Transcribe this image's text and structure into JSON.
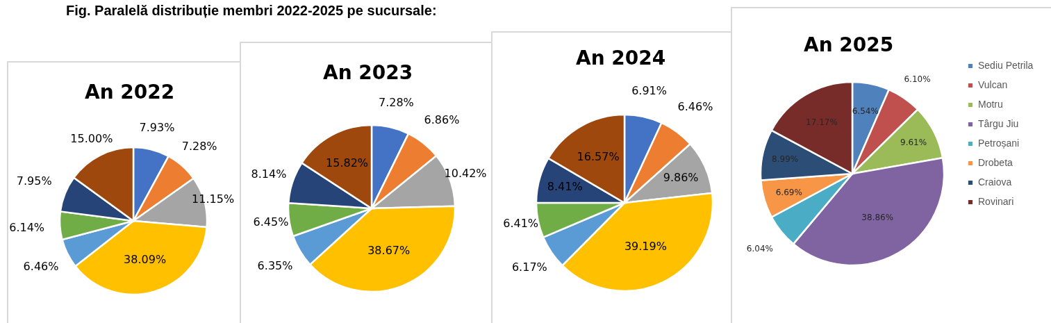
{
  "chart_data": [
    {
      "type": "pie",
      "title": "An 2022",
      "annotations": [
        "Fig. Paralelă distribuție membri 2022-2025 pe sucursale:"
      ],
      "categories": [
        null,
        null,
        null,
        null,
        null,
        null,
        null,
        null
      ],
      "values": [
        7.93,
        7.28,
        11.15,
        38.09,
        6.46,
        6.14,
        7.95,
        15.0
      ],
      "value_labels": [
        "7.93%",
        "7.28%",
        "11.15%",
        "38.09%",
        "6.46%",
        "6.14%",
        "7.95%",
        "15.00%"
      ],
      "colors": [
        "#4472c4",
        "#ed7d31",
        "#a5a5a5",
        "#ffc000",
        "#5b9bd5",
        "#70ad47",
        "#264478",
        "#9e480e"
      ],
      "legend": false
    },
    {
      "type": "pie",
      "title": "An 2023",
      "categories": [
        null,
        null,
        null,
        null,
        null,
        null,
        null,
        null
      ],
      "values": [
        7.28,
        6.86,
        10.42,
        38.67,
        6.35,
        6.45,
        8.14,
        15.82
      ],
      "value_labels": [
        "7.28%",
        "6.86%",
        "10.42%",
        "38.67%",
        "6.35%",
        "6.45%",
        "8.14%",
        "15.82%"
      ],
      "colors": [
        "#4472c4",
        "#ed7d31",
        "#a5a5a5",
        "#ffc000",
        "#5b9bd5",
        "#70ad47",
        "#264478",
        "#9e480e"
      ],
      "legend": false
    },
    {
      "type": "pie",
      "title": "An 2024",
      "categories": [
        null,
        null,
        null,
        null,
        null,
        null,
        null,
        null
      ],
      "values": [
        6.91,
        6.46,
        9.86,
        39.19,
        6.17,
        6.41,
        8.41,
        16.57
      ],
      "value_labels": [
        "6.91%",
        "6.46%",
        "9.86%",
        "39.19%",
        "6.17%",
        "6.41%",
        "8.41%",
        "16.57%"
      ],
      "colors": [
        "#4472c4",
        "#ed7d31",
        "#a5a5a5",
        "#ffc000",
        "#5b9bd5",
        "#70ad47",
        "#264478",
        "#9e480e"
      ],
      "legend": false
    },
    {
      "type": "pie",
      "title": "An 2025",
      "categories": [
        "Sediu Petrila",
        "Vulcan",
        "Motru",
        "Târgu Jiu",
        "Petroșani",
        "Drobeta",
        "Craiova",
        "Rovinari"
      ],
      "values": [
        6.54,
        6.1,
        9.61,
        38.86,
        6.04,
        6.69,
        8.99,
        17.17
      ],
      "value_labels": [
        "6.54%",
        "6.10%",
        "9.61%",
        "38.86%",
        "6.04%",
        "6.69%",
        "8.99%",
        "17.17%"
      ],
      "colors": [
        "#4f81bd",
        "#c0504d",
        "#9bbb59",
        "#8064a2",
        "#4bacc6",
        "#f79646",
        "#2c4d75",
        "#772c2a"
      ],
      "legend": "right"
    }
  ]
}
